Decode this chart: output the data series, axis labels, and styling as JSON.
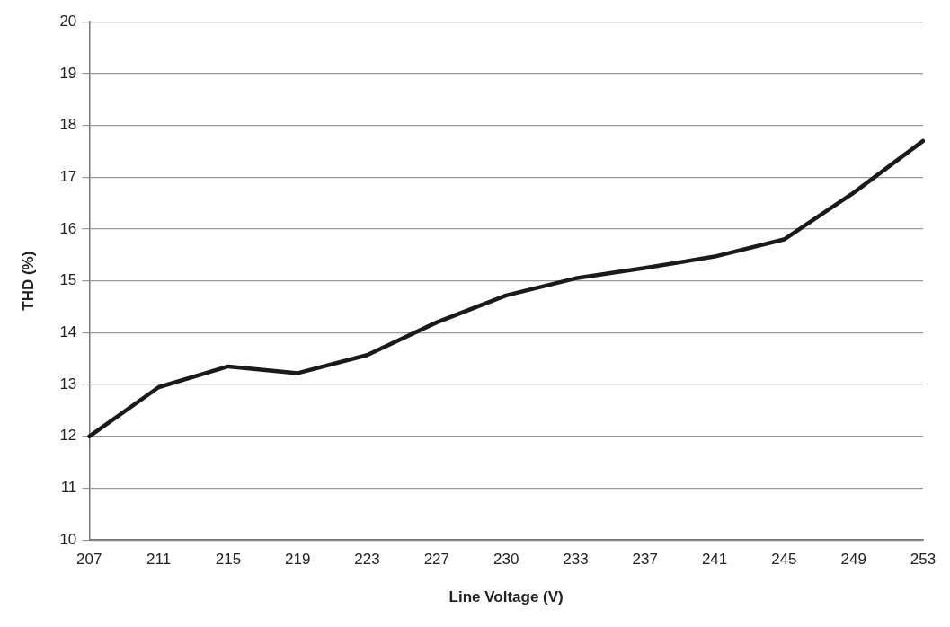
{
  "chart_data": {
    "type": "line",
    "xlabel": "Line Voltage (V)",
    "ylabel": "THD (%)",
    "categories": [
      "207",
      "211",
      "215",
      "219",
      "223",
      "227",
      "230",
      "233",
      "237",
      "241",
      "245",
      "249",
      "253"
    ],
    "series": [
      {
        "color": "#1a1a1a",
        "values": [
          12.0,
          12.95,
          13.35,
          13.22,
          13.57,
          14.2,
          14.72,
          15.05,
          15.25,
          15.47,
          15.8,
          16.7,
          17.7
        ]
      }
    ],
    "ylim": [
      10,
      20
    ],
    "yticks": [
      10,
      11,
      12,
      13,
      14,
      15,
      16,
      17,
      18,
      19,
      20
    ],
    "grid": "y",
    "legend": false,
    "marker": "none",
    "line_style": "solid"
  }
}
